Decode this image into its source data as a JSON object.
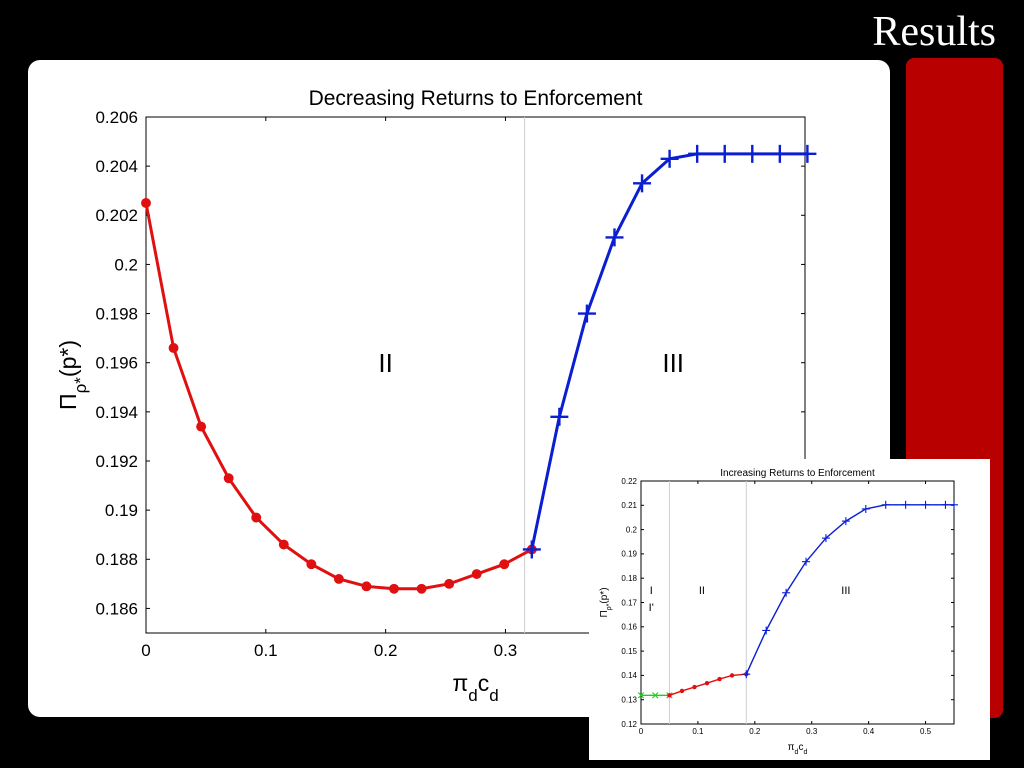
{
  "slide": {
    "title": "Results",
    "background_color": "#000000",
    "accent_bar_color": "#b80000"
  },
  "chart_data": [
    {
      "type": "line",
      "title": "Decreasing Returns to Enforcement",
      "xlabel": "π_d c_d",
      "ylabel": "Π_ρ*(p*)",
      "xlim": [
        0,
        0.55
      ],
      "ylim": [
        0.185,
        0.206
      ],
      "xticks": [
        "0",
        "0.1",
        "0.2",
        "0.3"
      ],
      "yticks": [
        "0.186",
        "0.188",
        "0.19",
        "0.192",
        "0.194",
        "0.196",
        "0.198",
        "0.2",
        "0.202",
        "0.204",
        "0.206"
      ],
      "regions": [
        {
          "label": "II",
          "x_label_at": 0.2,
          "y_label_at": 0.196
        },
        {
          "label": "III",
          "x_label_at": 0.44,
          "y_label_at": 0.196
        }
      ],
      "region_boundaries": [
        0.316
      ],
      "grid": false,
      "series": [
        {
          "color": "#e01010",
          "marker": "dot",
          "x": [
            0,
            0.023,
            0.046,
            0.069,
            0.092,
            0.115,
            0.138,
            0.161,
            0.184,
            0.207,
            0.23,
            0.253,
            0.276,
            0.299,
            0.322
          ],
          "y": [
            0.2025,
            0.1966,
            0.1934,
            0.1913,
            0.1897,
            0.1886,
            0.1878,
            0.1872,
            0.1869,
            0.1868,
            0.1868,
            0.187,
            0.1874,
            0.1878,
            0.1884
          ]
        },
        {
          "color": "#0a1ed2",
          "marker": "plus",
          "x": [
            0.322,
            0.345,
            0.368,
            0.391,
            0.414,
            0.437,
            0.46,
            0.483,
            0.506,
            0.529,
            0.552
          ],
          "y": [
            0.1884,
            0.1938,
            0.198,
            0.2011,
            0.2033,
            0.2043,
            0.2045,
            0.2045,
            0.2045,
            0.2045,
            0.2045
          ]
        }
      ]
    },
    {
      "type": "line",
      "title": "Increasing Returns to Enforcement",
      "xlabel": "π_d c_d",
      "ylabel": "Π_ρ*(p*)",
      "xlim": [
        0,
        0.55
      ],
      "ylim": [
        0.12,
        0.22
      ],
      "xticks": [
        "0",
        "0.1",
        "0.2",
        "0.3",
        "0.4",
        "0.5"
      ],
      "yticks": [
        "0.12",
        "0.13",
        "0.14",
        "0.15",
        "0.16",
        "0.17",
        "0.18",
        "0.19",
        "0.2",
        "0.21",
        "0.22"
      ],
      "regions": [
        {
          "label": "I",
          "x_label_at": 0.018,
          "y_label_at": 0.175
        },
        {
          "label": "I'",
          "x_label_at": 0.018,
          "y_label_at": 0.168
        },
        {
          "label": "II",
          "x_label_at": 0.107,
          "y_label_at": 0.175
        },
        {
          "label": "III",
          "x_label_at": 0.36,
          "y_label_at": 0.175
        }
      ],
      "region_boundaries": [
        0.05,
        0.185
      ],
      "grid": false,
      "series": [
        {
          "color": "#22cc22",
          "marker": "x",
          "x": [
            0,
            0.025,
            0.05
          ],
          "y": [
            0.1318,
            0.1318,
            0.1318
          ]
        },
        {
          "color": "#e01010",
          "marker": "dot",
          "x": [
            0.05,
            0.072,
            0.094,
            0.116,
            0.138,
            0.16,
            0.185
          ],
          "y": [
            0.1318,
            0.1336,
            0.1352,
            0.1368,
            0.1385,
            0.14,
            0.1405
          ]
        },
        {
          "color": "#0a1ed2",
          "marker": "plus",
          "x": [
            0.185,
            0.22,
            0.255,
            0.29,
            0.325,
            0.36,
            0.395,
            0.43,
            0.465,
            0.5,
            0.535,
            0.55
          ],
          "y": [
            0.1405,
            0.1585,
            0.174,
            0.1868,
            0.1965,
            0.2035,
            0.2085,
            0.2102,
            0.2102,
            0.2102,
            0.2102,
            0.2102
          ]
        }
      ]
    }
  ]
}
